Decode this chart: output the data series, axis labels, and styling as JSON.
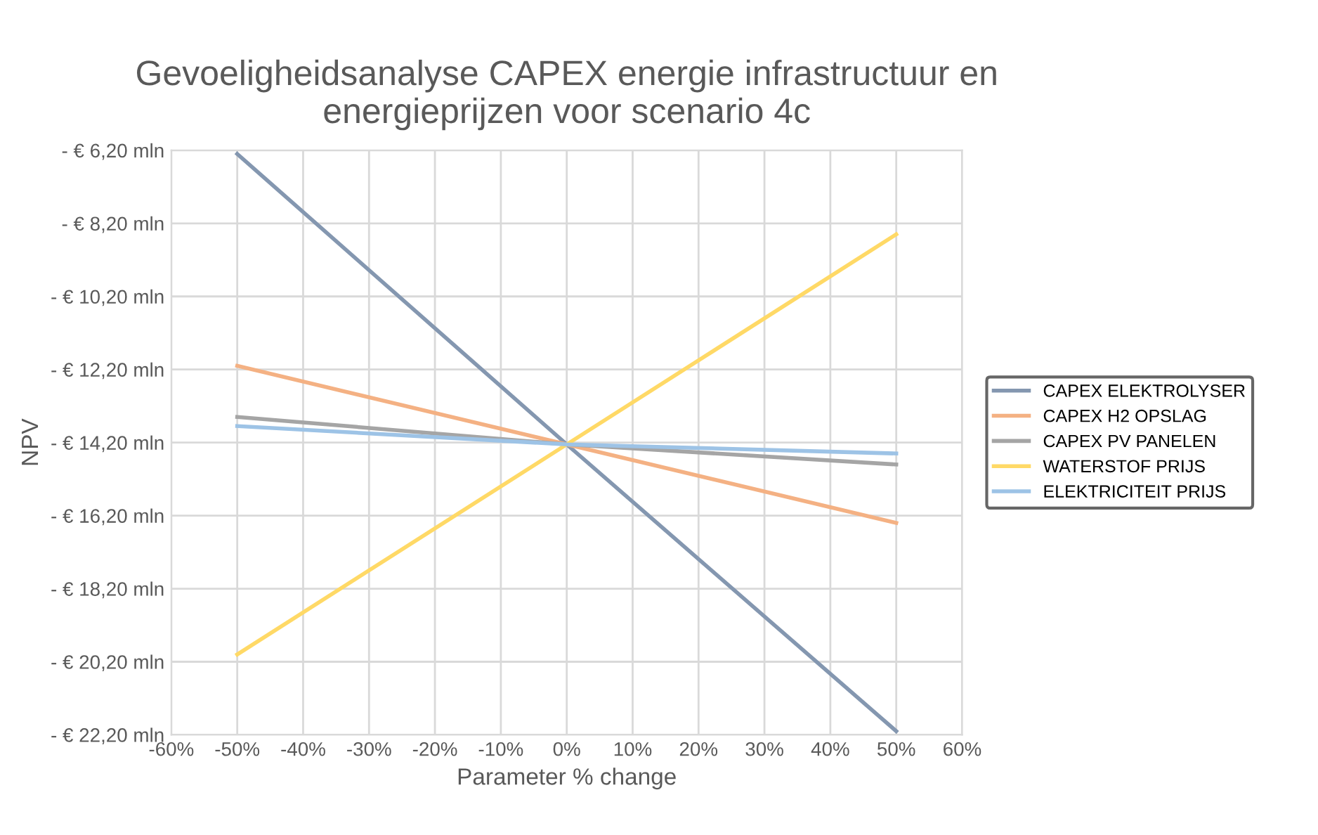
{
  "chart_data": {
    "type": "line",
    "title": "Gevoeligheidsanalyse CAPEX energie infrastructuur en\nenergieprijzen voor scenario 4c",
    "xlabel": "Parameter % change",
    "ylabel": "NPV",
    "x": [
      -50,
      0,
      50
    ],
    "series": [
      {
        "name": "CAPEX ELEKTROLYSER",
        "color": "#8497b0",
        "values": [
          -6.3,
          -14.25,
          -22.1
        ]
      },
      {
        "name": "CAPEX H2 OPSLAG",
        "color": "#f4b183",
        "values": [
          -12.1,
          -14.25,
          -16.4
        ]
      },
      {
        "name": "CAPEX PV PANELEN",
        "color": "#a5a5a5",
        "values": [
          -13.5,
          -14.25,
          -14.8
        ]
      },
      {
        "name": "WATERSTOF PRIJS",
        "color": "#ffd966",
        "values": [
          -20.0,
          -14.25,
          -8.5
        ]
      },
      {
        "name": "ELEKTRICITEIT PRIJS",
        "color": "#9dc3e6",
        "values": [
          -13.75,
          -14.25,
          -14.5
        ]
      }
    ],
    "xlim": [
      -60,
      60
    ],
    "xticks": [
      {
        "value": -60,
        "label": "-60%"
      },
      {
        "value": -50,
        "label": "-50%"
      },
      {
        "value": -40,
        "label": "-40%"
      },
      {
        "value": -30,
        "label": "-30%"
      },
      {
        "value": -20,
        "label": "-20%"
      },
      {
        "value": -10,
        "label": "-10%"
      },
      {
        "value": 0,
        "label": "0%"
      },
      {
        "value": 10,
        "label": "10%"
      },
      {
        "value": 20,
        "label": "20%"
      },
      {
        "value": 30,
        "label": "30%"
      },
      {
        "value": 40,
        "label": "40%"
      },
      {
        "value": 50,
        "label": "50%"
      },
      {
        "value": 60,
        "label": "60%"
      }
    ],
    "ylim": [
      -22.2,
      -6.2
    ],
    "yticks": [
      {
        "value": -22.2,
        "label": "- € 22,20 mln"
      },
      {
        "value": -20.2,
        "label": "- € 20,20 mln"
      },
      {
        "value": -18.2,
        "label": "- € 18,20 mln"
      },
      {
        "value": -16.2,
        "label": "- € 16,20 mln"
      },
      {
        "value": -14.2,
        "label": "- € 14,20 mln"
      },
      {
        "value": -12.2,
        "label": "- € 12,20 mln"
      },
      {
        "value": -10.2,
        "label": "- € 10,20 mln"
      },
      {
        "value": -8.2,
        "label": "- € 8,20 mln"
      },
      {
        "value": -6.2,
        "label": "- € 6,20 mln"
      }
    ],
    "grid": true,
    "legend": "right",
    "marker": "none",
    "line_style": "solid"
  }
}
